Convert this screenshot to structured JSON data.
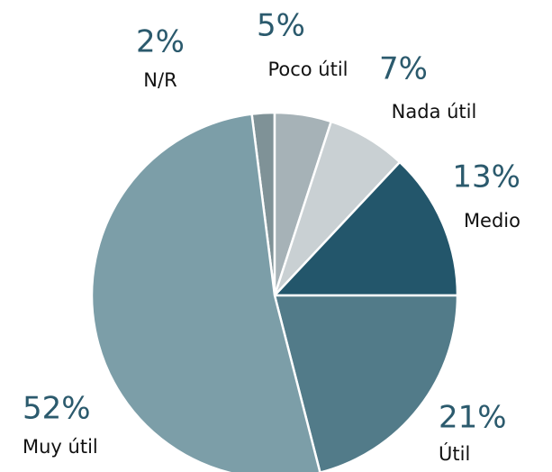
{
  "chart_data": {
    "type": "pie",
    "categories": [
      "N/R",
      "Poco útil",
      "Nada útil",
      "Medio",
      "Útil",
      "Muy útil"
    ],
    "values": [
      2,
      5,
      7,
      13,
      21,
      52
    ],
    "value_labels": [
      "2%",
      "5%",
      "7%",
      "13%",
      "21%",
      "52%"
    ],
    "colors": [
      "#7f9297",
      "#a6b2b7",
      "#c9d0d3",
      "#23566b",
      "#527b89",
      "#7c9ea8"
    ]
  }
}
